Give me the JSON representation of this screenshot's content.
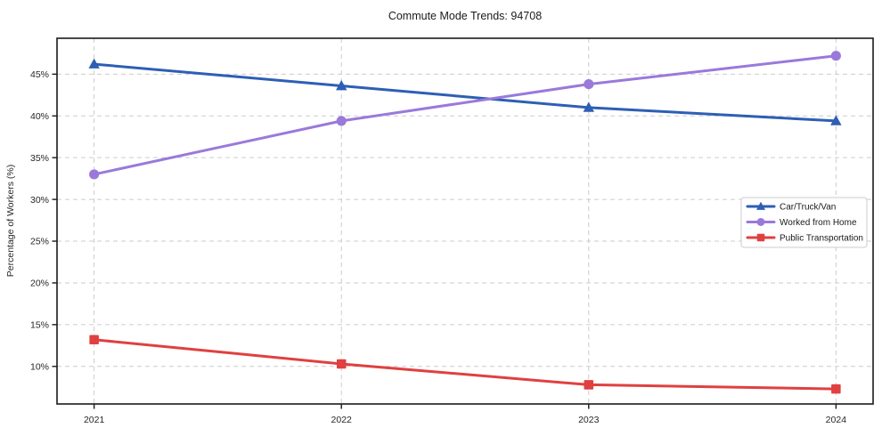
{
  "chart_data": {
    "type": "line",
    "title": "Commute Mode Trends: 94708",
    "xlabel": "",
    "ylabel": "Percentage of Workers (%)",
    "x": [
      2021,
      2022,
      2023,
      2024
    ],
    "xtick_labels": [
      "2021",
      "2022",
      "2023",
      "2024"
    ],
    "yticks": [
      10,
      15,
      20,
      25,
      30,
      35,
      40,
      45
    ],
    "ytick_labels": [
      "10%",
      "15%",
      "20%",
      "25%",
      "30%",
      "35%",
      "40%",
      "45%"
    ],
    "xlim": [
      2020.85,
      2024.15
    ],
    "ylim": [
      5.5,
      49.3
    ],
    "grid": true,
    "grid_style": "dashed",
    "grid_color": "#cccccc",
    "axis_color": "#1a1a1a",
    "background_color": "#ffffff",
    "legend_position": "right-middle",
    "series": [
      {
        "name": "Car/Truck/Van",
        "color": "#2d5fb4",
        "marker": "triangle",
        "values": [
          46.2,
          43.6,
          41.0,
          39.4
        ]
      },
      {
        "name": "Worked from Home",
        "color": "#9a79db",
        "marker": "circle",
        "values": [
          33.0,
          39.4,
          43.8,
          47.2
        ]
      },
      {
        "name": "Public Transportation",
        "color": "#e04040",
        "marker": "square",
        "values": [
          13.2,
          10.3,
          7.8,
          7.3
        ]
      }
    ]
  }
}
